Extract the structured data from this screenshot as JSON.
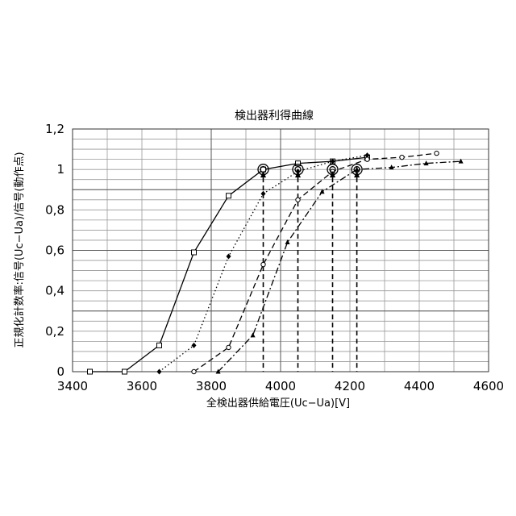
{
  "chart_data": {
    "type": "line",
    "title": "検出器利得曲線",
    "xlabel": "全検出器供給電圧(Uc−Ua)[V]",
    "ylabel": "正規化計数率:信号(Uc−Ua)/信号(動作点)",
    "xlim": [
      3400,
      4600
    ],
    "ylim": [
      0,
      1.2
    ],
    "x_ticks": [
      "3400",
      "3600",
      "3800",
      "4000",
      "4200",
      "4400",
      "4600"
    ],
    "y_ticks": [
      "0",
      "0,2",
      "0,4",
      "0,6",
      "0,8",
      "1",
      "1,2"
    ],
    "grid": true,
    "series": [
      {
        "style": "solid",
        "marker": "square-open",
        "x": [
          3450,
          3550,
          3650,
          3750,
          3850,
          3950,
          4050,
          4150,
          4250
        ],
        "y": [
          0,
          0,
          0.13,
          0.59,
          0.87,
          1.0,
          1.03,
          1.04,
          1.06
        ]
      },
      {
        "style": "dotted",
        "marker": "diamond-filled",
        "x": [
          3650,
          3750,
          3850,
          3950,
          4050,
          4150,
          4250
        ],
        "y": [
          0,
          0.13,
          0.57,
          0.88,
          0.99,
          1.04,
          1.07
        ]
      },
      {
        "style": "dashed",
        "marker": "circle-open",
        "x": [
          3750,
          3850,
          3950,
          4050,
          4150,
          4250,
          4350,
          4450
        ],
        "y": [
          0,
          0.12,
          0.53,
          0.85,
          0.99,
          1.05,
          1.06,
          1.08
        ]
      },
      {
        "style": "dashdot",
        "marker": "triangle-filled",
        "x": [
          3820,
          3920,
          4020,
          4120,
          4220,
          4320,
          4420,
          4520
        ],
        "y": [
          0,
          0.18,
          0.64,
          0.89,
          1.0,
          1.01,
          1.03,
          1.04
        ]
      }
    ],
    "operating_points": [
      {
        "x": 3950,
        "y": 1.0
      },
      {
        "x": 4050,
        "y": 1.0
      },
      {
        "x": 4150,
        "y": 1.0
      },
      {
        "x": 4220,
        "y": 1.0
      }
    ]
  }
}
